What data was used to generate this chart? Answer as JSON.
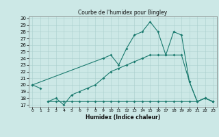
{
  "title": "Courbe de l'humidex pour Bingley",
  "xlabel": "Humidex (Indice chaleur)",
  "background_color": "#cce8e6",
  "grid_color": "#aacfcd",
  "line_color": "#1a7a6e",
  "x_values": [
    0,
    1,
    2,
    3,
    4,
    5,
    6,
    7,
    8,
    9,
    10,
    11,
    12,
    13,
    14,
    15,
    16,
    17,
    18,
    19,
    20,
    21,
    22,
    23
  ],
  "series": [
    {
      "x": [
        0,
        1,
        2,
        3,
        4,
        5,
        6,
        7,
        8,
        9,
        10,
        11,
        12,
        13,
        14,
        15,
        16,
        17,
        18,
        19,
        20,
        21,
        22,
        23
      ],
      "y": [
        20.0,
        19.5,
        null,
        null,
        null,
        null,
        null,
        null,
        null,
        null,
        null,
        null,
        null,
        null,
        null,
        null,
        null,
        null,
        null,
        null,
        null,
        null,
        null,
        null
      ]
    },
    {
      "x": [
        0,
        1,
        2,
        3,
        4,
        5,
        6,
        7,
        8,
        9,
        10,
        11,
        12,
        13,
        14,
        15,
        16,
        17,
        18,
        19,
        20,
        21,
        22,
        23
      ],
      "y": [
        null,
        null,
        17.5,
        18.0,
        17.0,
        18.5,
        19.0,
        19.5,
        20.0,
        21.0,
        22.0,
        22.5,
        23.0,
        23.5,
        24.0,
        24.5,
        24.5,
        24.5,
        24.5,
        24.5,
        20.5,
        17.5,
        18.0,
        17.5
      ]
    },
    {
      "x": [
        2,
        3,
        4,
        5,
        6,
        7,
        8,
        9,
        10,
        11,
        12,
        13,
        14,
        15,
        16,
        17,
        18,
        19,
        20,
        21,
        22,
        23
      ],
      "y": [
        17.5,
        17.5,
        17.5,
        17.5,
        17.5,
        17.5,
        17.5,
        17.5,
        17.5,
        17.5,
        17.5,
        17.5,
        17.5,
        17.5,
        17.5,
        17.5,
        17.5,
        17.5,
        17.5,
        17.5,
        18.0,
        17.5
      ]
    },
    {
      "x": [
        0,
        9,
        10,
        11,
        12,
        13,
        14,
        15,
        16,
        17,
        18,
        19,
        20,
        21,
        22,
        23
      ],
      "y": [
        20.0,
        24.0,
        24.5,
        23.0,
        25.5,
        27.5,
        28.0,
        29.5,
        28.0,
        24.5,
        28.0,
        27.5,
        20.5,
        17.5,
        18.0,
        17.5
      ]
    }
  ],
  "ylim": [
    17,
    30
  ],
  "xlim": [
    -0.5,
    23.5
  ],
  "yticks": [
    17,
    18,
    19,
    20,
    21,
    22,
    23,
    24,
    25,
    26,
    27,
    28,
    29,
    30
  ],
  "xticks": [
    0,
    1,
    2,
    3,
    4,
    5,
    6,
    7,
    8,
    9,
    10,
    11,
    12,
    13,
    14,
    15,
    16,
    17,
    18,
    19,
    20,
    21,
    22,
    23
  ]
}
